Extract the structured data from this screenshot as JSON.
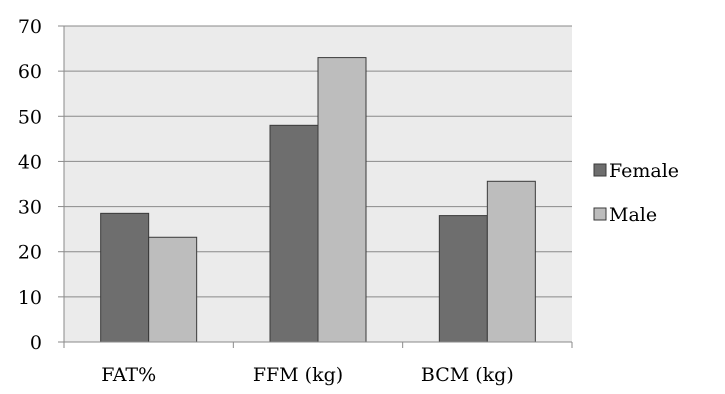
{
  "chart_data": {
    "type": "bar",
    "title": "",
    "xlabel": "",
    "ylabel": "",
    "categories": [
      "FAT%",
      "FFM (kg)",
      "BCM (kg)"
    ],
    "series": [
      {
        "name": "Female",
        "values": [
          28.5,
          48,
          28
        ],
        "color": "#6e6e6e"
      },
      {
        "name": "Male",
        "values": [
          23.2,
          63,
          35.6
        ],
        "color": "#bdbdbd"
      }
    ],
    "ylim": [
      0,
      70
    ],
    "yticks": [
      0,
      10,
      20,
      30,
      40,
      50,
      60,
      70
    ],
    "grid": true,
    "plot_background": "#ebebeb",
    "legend_position": "right"
  }
}
